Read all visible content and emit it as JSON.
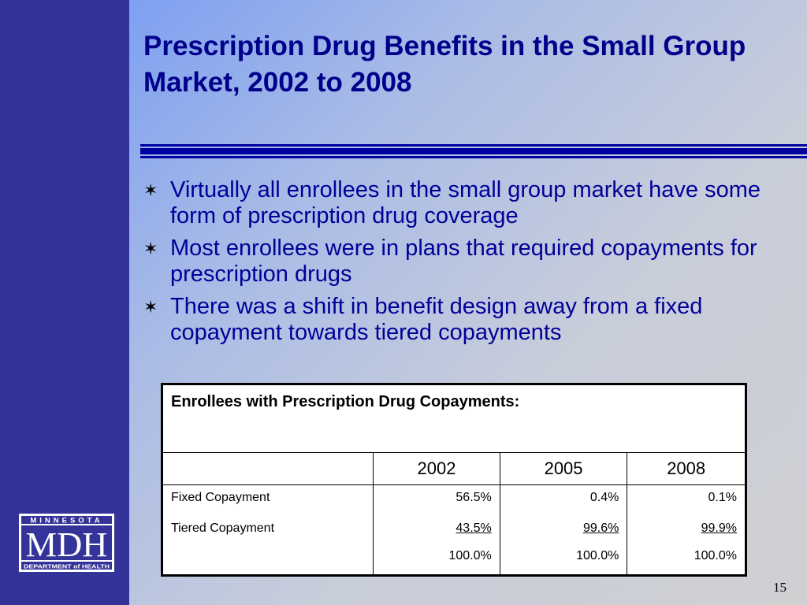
{
  "slide": {
    "title": "Prescription Drug Benefits in the Small Group Market, 2002 to 2008",
    "page_number": "15",
    "colors": {
      "sidebar": "#333399",
      "title": "#00008b",
      "bullet_text": "#000099"
    }
  },
  "logo": {
    "top_text": "MINNESOTA",
    "main_text": "MDH",
    "bottom_text": "DEPARTMENT of HEALTH"
  },
  "bullets": [
    {
      "text": "Virtually all enrollees in the small group market have some form of prescription drug coverage",
      "icon": "star-bullet-icon"
    },
    {
      "text": "Most enrollees were in plans that required copayments for prescription drugs",
      "icon": "star-bullet-icon"
    },
    {
      "text": "There was a shift in benefit design away from a fixed copayment towards tiered copayments",
      "icon": "star-bullet-icon"
    }
  ],
  "bullet_glyph": "✶",
  "table": {
    "caption": "Enrollees with Prescription Drug Copayments:",
    "years": [
      "2002",
      "2005",
      "2008"
    ],
    "rows": [
      {
        "label": "Fixed Copayment",
        "values": [
          "56.5%",
          "0.4%",
          "0.1%"
        ]
      },
      {
        "label": "Tiered Copayment",
        "values": [
          "43.5%",
          "99.6%",
          "99.9%"
        ]
      }
    ],
    "totals": [
      "100.0%",
      "100.0%",
      "100.0%"
    ]
  }
}
